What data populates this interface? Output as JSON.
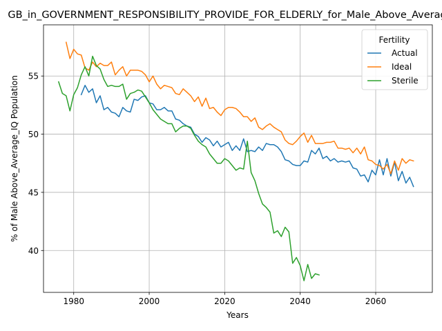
{
  "chart_data": {
    "type": "line",
    "title": "GB_in_GOVERNMENT_RESPONSIBILITY_PROVIDE_FOR_ELDERLY_for_Male_Above_Average_IQ",
    "xlabel": "Years",
    "ylabel": "% of Male Above_Average_IQ Population",
    "xlim": [
      1972,
      2075
    ],
    "ylim": [
      36.4,
      59.4
    ],
    "x_ticks": [
      1980,
      2000,
      2020,
      2040,
      2060
    ],
    "y_ticks": [
      40,
      45,
      50,
      55
    ],
    "grid": true,
    "legend": {
      "title": "Fertility",
      "position": "top-right"
    },
    "series": [
      {
        "name": "Actual",
        "color": "#1f77b4",
        "x": [
          1982,
          1983,
          1984,
          1985,
          1986,
          1987,
          1988,
          1989,
          1990,
          1991,
          1992,
          1993,
          1994,
          1995,
          1996,
          1997,
          1998,
          1999,
          2000,
          2001,
          2002,
          2003,
          2004,
          2005,
          2006,
          2007,
          2008,
          2009,
          2010,
          2011,
          2012,
          2013,
          2014,
          2015,
          2016,
          2017,
          2018,
          2019,
          2020,
          2021,
          2022,
          2023,
          2024,
          2025,
          2026,
          2027,
          2028,
          2029,
          2030,
          2031,
          2032,
          2033,
          2034,
          2035,
          2036,
          2037,
          2038,
          2039,
          2040,
          2041,
          2042,
          2043,
          2044,
          2045,
          2046,
          2047,
          2048,
          2049,
          2050,
          2051,
          2052,
          2053,
          2054,
          2055,
          2056,
          2057,
          2058,
          2059,
          2060,
          2061,
          2062,
          2063,
          2064,
          2065,
          2066,
          2067,
          2068,
          2069,
          2070
        ],
        "values": [
          53.4,
          54.2,
          53.6,
          53.9,
          52.7,
          53.3,
          52.1,
          52.3,
          51.9,
          51.8,
          51.5,
          52.3,
          52.0,
          51.9,
          53.0,
          52.9,
          53.2,
          53.3,
          52.7,
          52.6,
          52.1,
          52.1,
          52.3,
          52.0,
          52.0,
          51.3,
          51.2,
          50.9,
          50.7,
          50.6,
          50.0,
          49.8,
          49.3,
          49.7,
          49.5,
          49.0,
          49.4,
          48.9,
          49.1,
          49.3,
          48.6,
          49.0,
          48.6,
          49.6,
          48.5,
          48.6,
          48.5,
          48.9,
          48.6,
          49.2,
          49.1,
          49.1,
          48.9,
          48.5,
          47.8,
          47.7,
          47.4,
          47.3,
          47.3,
          47.7,
          47.6,
          48.6,
          48.3,
          48.8,
          47.9,
          48.1,
          47.7,
          47.9,
          47.6,
          47.7,
          47.6,
          47.7,
          47.1,
          47.0,
          46.4,
          46.5,
          45.9,
          46.9,
          46.5,
          47.8,
          46.5,
          47.9,
          46.4,
          47.6,
          46.0,
          46.8,
          45.8,
          46.3,
          45.5
        ]
      },
      {
        "name": "Ideal",
        "color": "#ff7f0e",
        "x": [
          1978,
          1979,
          1980,
          1981,
          1982,
          1983,
          1984,
          1985,
          1986,
          1987,
          1988,
          1989,
          1990,
          1991,
          1992,
          1993,
          1994,
          1995,
          1996,
          1997,
          1998,
          1999,
          2000,
          2001,
          2002,
          2003,
          2004,
          2005,
          2006,
          2007,
          2008,
          2009,
          2010,
          2011,
          2012,
          2013,
          2014,
          2015,
          2016,
          2017,
          2018,
          2019,
          2020,
          2021,
          2022,
          2023,
          2024,
          2025,
          2026,
          2027,
          2028,
          2029,
          2030,
          2031,
          2032,
          2033,
          2034,
          2035,
          2036,
          2037,
          2038,
          2039,
          2040,
          2041,
          2042,
          2043,
          2044,
          2045,
          2046,
          2047,
          2048,
          2049,
          2050,
          2051,
          2052,
          2053,
          2054,
          2055,
          2056,
          2057,
          2058,
          2059,
          2060,
          2061,
          2062,
          2063,
          2064,
          2065,
          2066,
          2067,
          2068,
          2069,
          2070
        ],
        "values": [
          57.9,
          56.5,
          57.3,
          56.9,
          56.8,
          55.7,
          55.5,
          56.2,
          55.8,
          56.1,
          55.9,
          55.9,
          56.2,
          55.1,
          55.5,
          55.8,
          55.0,
          55.5,
          55.5,
          55.5,
          55.4,
          55.1,
          54.5,
          55.0,
          54.3,
          53.9,
          54.2,
          54.1,
          54.0,
          53.5,
          53.4,
          53.9,
          53.6,
          53.3,
          52.8,
          53.2,
          52.4,
          53.1,
          52.2,
          52.3,
          51.9,
          51.6,
          52.1,
          52.3,
          52.3,
          52.2,
          51.9,
          51.5,
          51.5,
          51.1,
          51.4,
          50.6,
          50.4,
          50.7,
          50.9,
          50.6,
          50.4,
          50.2,
          49.5,
          49.2,
          49.1,
          49.4,
          49.8,
          50.1,
          49.3,
          49.9,
          49.2,
          49.2,
          49.2,
          49.3,
          49.3,
          49.4,
          48.8,
          48.8,
          48.7,
          48.8,
          48.4,
          48.8,
          48.3,
          48.9,
          47.8,
          47.7,
          47.4,
          47.3,
          47.0,
          47.4,
          46.6,
          47.7,
          46.9,
          47.9,
          47.5,
          47.8,
          47.7
        ]
      },
      {
        "name": "Sterile",
        "color": "#2ca02c",
        "x": [
          1976,
          1977,
          1978,
          1979,
          1980,
          1981,
          1982,
          1983,
          1984,
          1985,
          1986,
          1987,
          1988,
          1989,
          1990,
          1991,
          1992,
          1993,
          1994,
          1995,
          1996,
          1997,
          1998,
          1999,
          2000,
          2001,
          2002,
          2003,
          2004,
          2005,
          2006,
          2007,
          2008,
          2009,
          2010,
          2011,
          2012,
          2013,
          2014,
          2015,
          2016,
          2017,
          2018,
          2019,
          2020,
          2021,
          2022,
          2023,
          2024,
          2025,
          2026,
          2027,
          2028,
          2029,
          2030,
          2031,
          2032,
          2033,
          2034,
          2035,
          2036,
          2037,
          2038,
          2039,
          2040,
          2041,
          2042,
          2043,
          2044,
          2045,
          2046
        ],
        "values": [
          54.5,
          53.5,
          53.3,
          52.0,
          53.4,
          54.0,
          55.1,
          55.8,
          55.0,
          56.7,
          55.9,
          55.6,
          54.7,
          54.1,
          54.2,
          54.1,
          54.1,
          54.3,
          53.0,
          53.5,
          53.6,
          53.8,
          53.7,
          53.2,
          52.7,
          52.1,
          51.7,
          51.3,
          51.1,
          50.9,
          50.9,
          50.2,
          50.5,
          50.7,
          50.7,
          50.5,
          49.9,
          49.4,
          49.1,
          48.9,
          48.3,
          47.9,
          47.5,
          47.5,
          47.9,
          47.7,
          47.3,
          46.9,
          47.1,
          47.0,
          49.4,
          46.7,
          46.0,
          44.9,
          44.0,
          43.7,
          43.3,
          41.5,
          41.7,
          41.2,
          42.0,
          41.6,
          38.9,
          39.4,
          38.7,
          37.4,
          38.8,
          37.6,
          38.0,
          37.9,
          null
        ]
      }
    ]
  }
}
